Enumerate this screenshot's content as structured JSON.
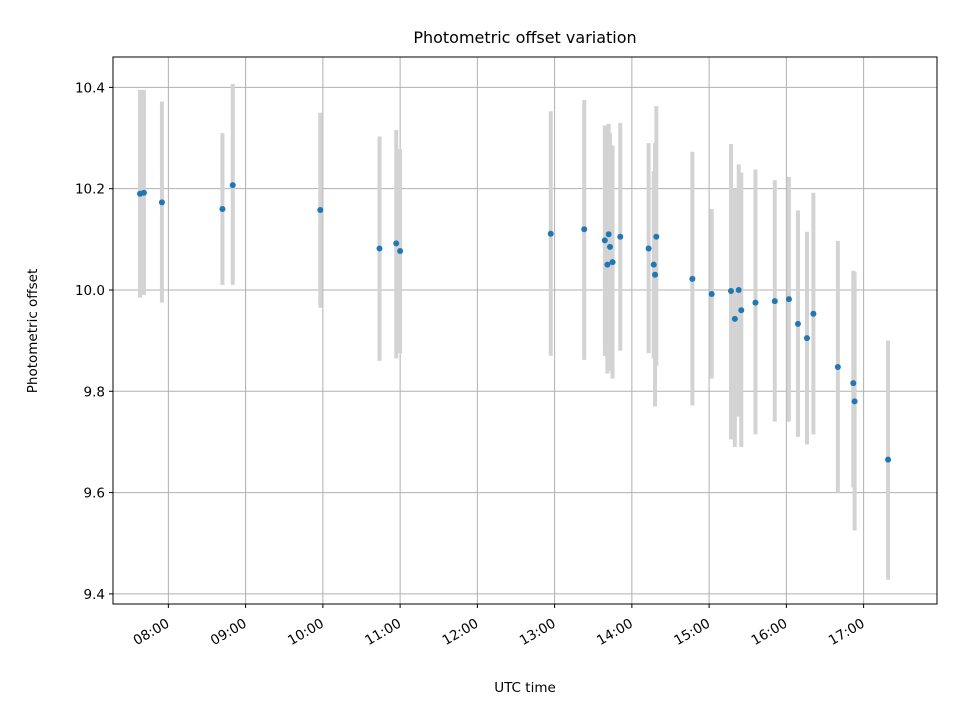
{
  "chart_data": {
    "type": "scatter",
    "title": "Photometric offset variation",
    "xlabel": "UTC time",
    "ylabel": "Photometric offset",
    "xlim": [
      "07:17",
      "17:57"
    ],
    "ylim": [
      9.38,
      10.46
    ],
    "grid": true,
    "x_ticks": [
      "08:00",
      "09:00",
      "10:00",
      "11:00",
      "12:00",
      "13:00",
      "14:00",
      "15:00",
      "16:00",
      "17:00"
    ],
    "y_ticks": [
      9.4,
      9.6,
      9.8,
      10.0,
      10.2,
      10.4
    ],
    "y_tick_labels": [
      "9.4",
      "9.6",
      "9.8",
      "10.0",
      "10.2",
      "10.4"
    ],
    "series": [
      {
        "marker_color": "#1f77b4",
        "errorbar_color": "#d3d3d3",
        "points": [
          {
            "x": "07:38",
            "y": 10.19,
            "lo": 9.985,
            "hi": 10.395
          },
          {
            "x": "07:41",
            "y": 10.192,
            "lo": 9.99,
            "hi": 10.395
          },
          {
            "x": "07:55",
            "y": 10.173,
            "lo": 9.975,
            "hi": 10.372
          },
          {
            "x": "08:42",
            "y": 10.16,
            "lo": 10.01,
            "hi": 10.31
          },
          {
            "x": "08:50",
            "y": 10.207,
            "lo": 10.01,
            "hi": 10.407
          },
          {
            "x": "09:58",
            "y": 10.158,
            "lo": 9.965,
            "hi": 10.35
          },
          {
            "x": "10:44",
            "y": 10.082,
            "lo": 9.86,
            "hi": 10.303
          },
          {
            "x": "10:57",
            "y": 10.092,
            "lo": 9.865,
            "hi": 10.316
          },
          {
            "x": "11:00",
            "y": 10.077,
            "lo": 9.875,
            "hi": 10.278
          },
          {
            "x": "12:57",
            "y": 10.111,
            "lo": 9.87,
            "hi": 10.353
          },
          {
            "x": "13:23",
            "y": 10.12,
            "lo": 9.862,
            "hi": 10.375
          },
          {
            "x": "13:39",
            "y": 10.098,
            "lo": 9.87,
            "hi": 10.325
          },
          {
            "x": "13:41",
            "y": 10.05,
            "lo": 9.835,
            "hi": 10.32
          },
          {
            "x": "13:42",
            "y": 10.11,
            "lo": 9.895,
            "hi": 10.328
          },
          {
            "x": "13:43",
            "y": 10.085,
            "lo": 9.84,
            "hi": 10.31
          },
          {
            "x": "13:45",
            "y": 10.055,
            "lo": 9.825,
            "hi": 10.285
          },
          {
            "x": "13:51",
            "y": 10.105,
            "lo": 9.88,
            "hi": 10.33
          },
          {
            "x": "14:13",
            "y": 10.082,
            "lo": 9.875,
            "hi": 10.29
          },
          {
            "x": "14:17",
            "y": 10.05,
            "lo": 9.865,
            "hi": 10.235
          },
          {
            "x": "14:18",
            "y": 10.03,
            "lo": 9.77,
            "hi": 10.29
          },
          {
            "x": "14:19",
            "y": 10.105,
            "lo": 9.85,
            "hi": 10.363
          },
          {
            "x": "14:47",
            "y": 10.022,
            "lo": 9.772,
            "hi": 10.273
          },
          {
            "x": "15:02",
            "y": 9.992,
            "lo": 9.825,
            "hi": 10.16
          },
          {
            "x": "15:17",
            "y": 9.998,
            "lo": 9.705,
            "hi": 10.288
          },
          {
            "x": "15:20",
            "y": 9.943,
            "lo": 9.69,
            "hi": 10.2
          },
          {
            "x": "15:23",
            "y": 10.0,
            "lo": 9.75,
            "hi": 10.248
          },
          {
            "x": "15:25",
            "y": 9.96,
            "lo": 9.69,
            "hi": 10.232
          },
          {
            "x": "15:36",
            "y": 9.975,
            "lo": 9.715,
            "hi": 10.238
          },
          {
            "x": "15:51",
            "y": 9.978,
            "lo": 9.74,
            "hi": 10.217
          },
          {
            "x": "16:02",
            "y": 9.982,
            "lo": 9.74,
            "hi": 10.223
          },
          {
            "x": "16:09",
            "y": 9.933,
            "lo": 9.71,
            "hi": 10.157
          },
          {
            "x": "16:16",
            "y": 9.905,
            "lo": 9.695,
            "hi": 10.115
          },
          {
            "x": "16:21",
            "y": 9.953,
            "lo": 9.715,
            "hi": 10.192
          },
          {
            "x": "16:40",
            "y": 9.848,
            "lo": 9.6,
            "hi": 10.097
          },
          {
            "x": "16:52",
            "y": 9.816,
            "lo": 9.61,
            "hi": 10.038
          },
          {
            "x": "16:53",
            "y": 9.78,
            "lo": 9.525,
            "hi": 10.035
          },
          {
            "x": "17:19",
            "y": 9.665,
            "lo": 9.428,
            "hi": 9.9
          }
        ]
      }
    ]
  }
}
